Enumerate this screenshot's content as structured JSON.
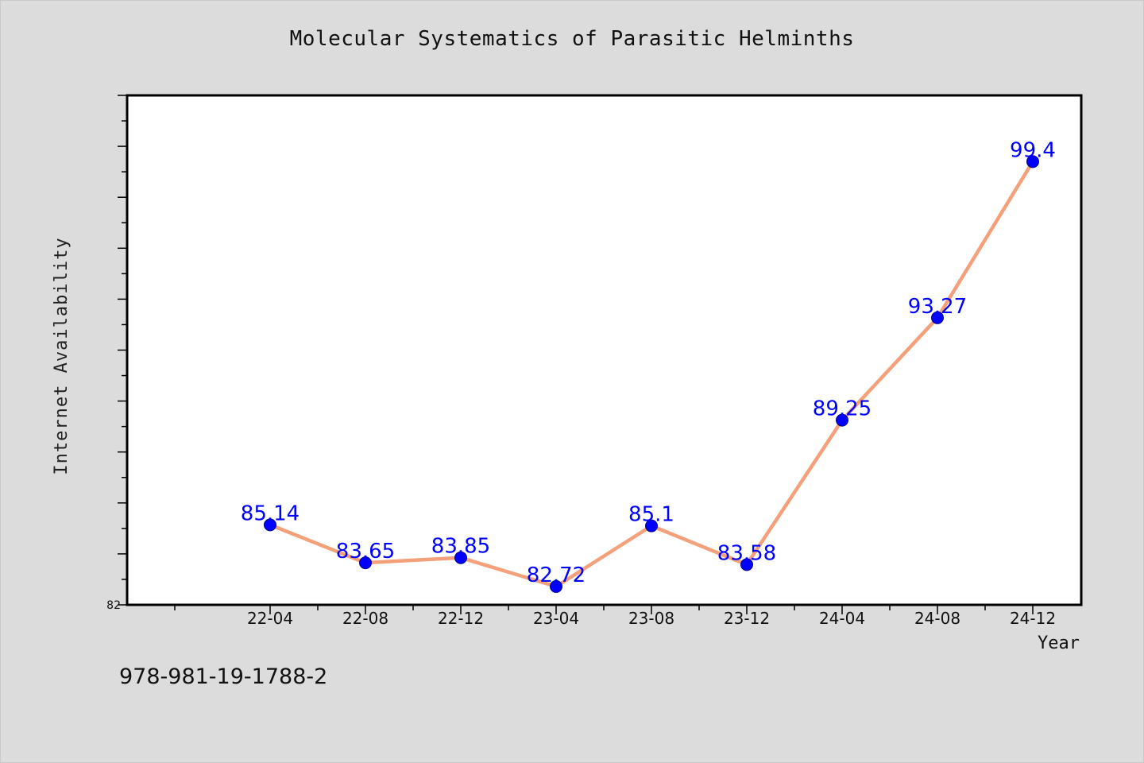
{
  "page": {
    "background": "#dcdcdc",
    "isbn": "978-981-19-1788-2"
  },
  "chart_data": {
    "type": "line",
    "title": "Molecular Systematics of Parasitic Helminths",
    "xlabel": "Year",
    "ylabel": "Internet Availability",
    "categories": [
      "22-04",
      "22-08",
      "22-12",
      "23-04",
      "23-08",
      "23-12",
      "24-04",
      "24-08",
      "24-12"
    ],
    "series": [
      {
        "values": [
          85.14,
          83.65,
          83.85,
          82.72,
          85.1,
          83.58,
          89.25,
          93.27,
          99.4
        ],
        "line_color": "#f4a07a",
        "marker_color": "#0000ff",
        "label_color": "#0000ff"
      }
    ],
    "ylim": [
      82,
      102
    ],
    "y_tick_labels": [
      "82"
    ],
    "grid": false,
    "legend": "none"
  }
}
